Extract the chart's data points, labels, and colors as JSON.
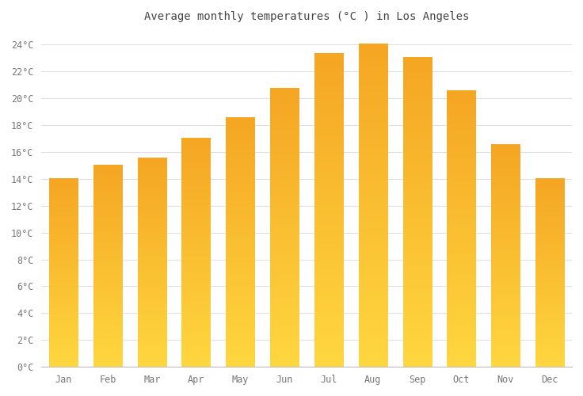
{
  "title": "Average monthly temperatures (°C ) in Los Angeles",
  "months": [
    "Jan",
    "Feb",
    "Mar",
    "Apr",
    "May",
    "Jun",
    "Jul",
    "Aug",
    "Sep",
    "Oct",
    "Nov",
    "Dec"
  ],
  "values": [
    14.0,
    15.0,
    15.5,
    17.0,
    18.5,
    20.7,
    23.3,
    24.0,
    23.0,
    20.5,
    16.5,
    14.0
  ],
  "bar_color_center": "#FFD740",
  "bar_color_edge": "#F5A623",
  "background_color": "#FFFFFF",
  "grid_color": "#E0E0E0",
  "ylim": [
    0,
    25
  ],
  "yticks": [
    0,
    2,
    4,
    6,
    8,
    10,
    12,
    14,
    16,
    18,
    20,
    22,
    24
  ],
  "title_fontsize": 10,
  "tick_fontsize": 8.5,
  "title_color": "#444444",
  "tick_color": "#777777",
  "bar_width": 0.65
}
